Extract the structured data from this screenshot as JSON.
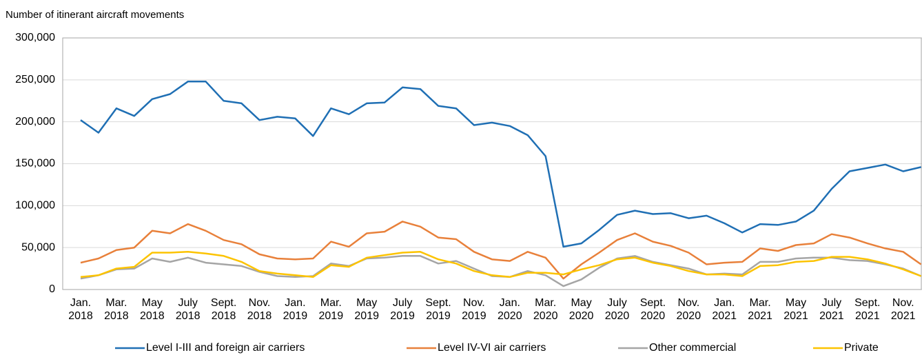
{
  "chart_data": {
    "type": "line",
    "y_axis_label": "Number of itinerant aircraft movements",
    "categories": [
      "Jan. 2018",
      null,
      "Mar. 2018",
      null,
      "May 2018",
      null,
      "July 2018",
      null,
      "Sept. 2018",
      null,
      "Nov. 2018",
      null,
      "Jan. 2019",
      null,
      "Mar. 2019",
      null,
      "May 2019",
      null,
      "July 2019",
      null,
      "Sept. 2019",
      null,
      "Nov. 2019",
      null,
      "Jan. 2020",
      null,
      "Mar. 2020",
      null,
      "May 2020",
      null,
      "July 2020",
      null,
      "Sept. 2020",
      null,
      "Nov. 2020",
      null,
      "Jan. 2021",
      null,
      "Mar. 2021",
      null,
      "May 2021",
      null,
      "July 2021",
      null,
      "Sept. 2021",
      null,
      "Nov. 2021",
      null
    ],
    "series": [
      {
        "name": "Level I-III and foreign air carriers",
        "color": "#1f6fb4",
        "values": [
          202000,
          187000,
          216000,
          207000,
          227000,
          233000,
          248000,
          248000,
          225000,
          222000,
          202000,
          206000,
          204000,
          183000,
          216000,
          209000,
          222000,
          223000,
          241000,
          239000,
          219000,
          216000,
          196000,
          199000,
          195000,
          184000,
          159000,
          51000,
          55000,
          71000,
          89000,
          94000,
          90000,
          91000,
          85000,
          88000,
          79000,
          68000,
          78000,
          77000,
          81000,
          94000,
          120000,
          141000,
          145000,
          149000,
          141000,
          146000
        ]
      },
      {
        "name": "Level IV-VI air carriers",
        "color": "#e8803a",
        "values": [
          32000,
          37000,
          47000,
          50000,
          70000,
          67000,
          78000,
          70000,
          59000,
          54000,
          42000,
          37000,
          36000,
          37000,
          57000,
          51000,
          67000,
          69000,
          81000,
          75000,
          62000,
          60000,
          45000,
          36000,
          34000,
          45000,
          38000,
          13000,
          30000,
          44000,
          59000,
          67000,
          57000,
          52000,
          44000,
          30000,
          32000,
          33000,
          49000,
          46000,
          53000,
          55000,
          66000,
          62000,
          55000,
          49000,
          45000,
          30000
        ]
      },
      {
        "name": "Other commercial",
        "color": "#a5a5a5",
        "values": [
          13000,
          17000,
          24000,
          25000,
          37000,
          33000,
          38000,
          32000,
          30000,
          28000,
          21000,
          16000,
          15000,
          16000,
          31000,
          28000,
          37000,
          38000,
          40000,
          40000,
          31000,
          34000,
          25000,
          16000,
          15000,
          22000,
          17000,
          4000,
          12000,
          26000,
          37000,
          40000,
          33000,
          29000,
          25000,
          18000,
          19000,
          18000,
          33000,
          33000,
          37000,
          38000,
          38000,
          35000,
          34000,
          30000,
          25000,
          16000
        ]
      },
      {
        "name": "Private",
        "color": "#fcc300",
        "values": [
          15000,
          17000,
          25000,
          27000,
          44000,
          44000,
          45000,
          43000,
          40000,
          33000,
          22000,
          19000,
          17000,
          15000,
          29000,
          27000,
          38000,
          41000,
          44000,
          45000,
          36000,
          31000,
          22000,
          17000,
          15000,
          20000,
          20000,
          18000,
          24000,
          29000,
          36000,
          38000,
          32000,
          28000,
          22000,
          18000,
          18000,
          16000,
          28000,
          29000,
          33000,
          34000,
          39000,
          39000,
          36000,
          31000,
          24000,
          16000
        ]
      }
    ],
    "ylim": [
      0,
      300000
    ],
    "yticks": [
      0,
      {
        "value": 50000,
        "label": "50,000"
      },
      {
        "value": 100000,
        "label": "100,000"
      },
      {
        "value": 150000,
        "label": "150,000"
      },
      {
        "value": 200000,
        "label": "200,000"
      },
      {
        "value": 250000,
        "label": "250,000"
      },
      {
        "value": 300000,
        "label": "300,000"
      }
    ],
    "grid": true,
    "legend": "bottom"
  }
}
